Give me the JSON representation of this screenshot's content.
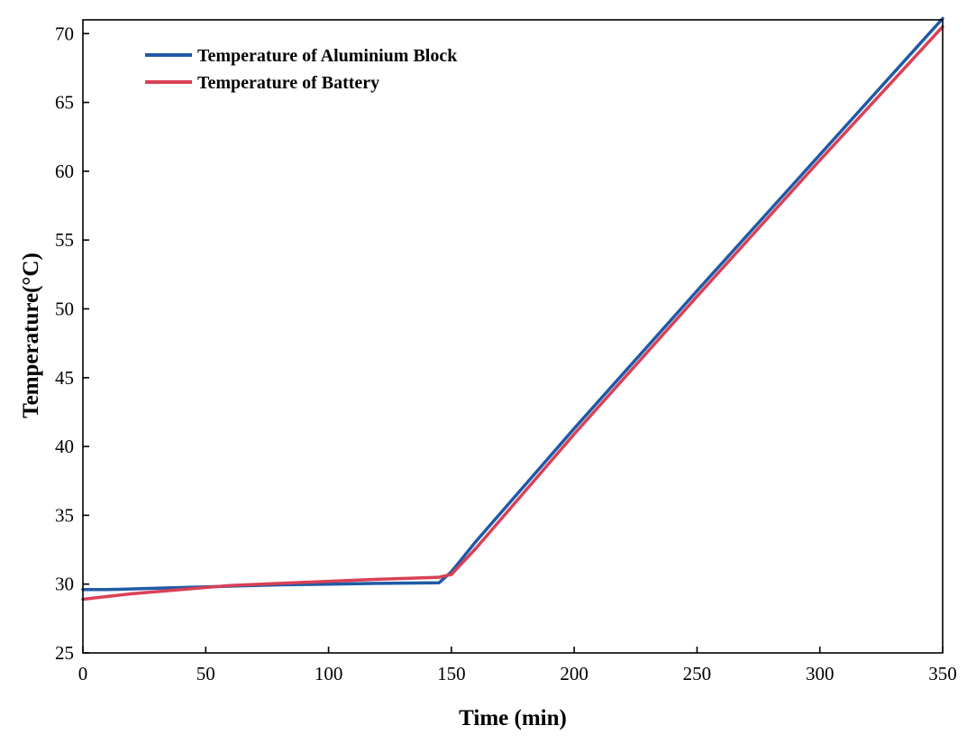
{
  "chart_data": {
    "type": "line",
    "xlabel": "Time (min)",
    "ylabel": "Temperature(°C)",
    "xlim": [
      0,
      350
    ],
    "ylim": [
      25,
      71
    ],
    "xticks": [
      0,
      50,
      100,
      150,
      200,
      250,
      300,
      350
    ],
    "yticks": [
      25,
      30,
      35,
      40,
      45,
      50,
      55,
      60,
      65,
      70
    ],
    "grid": false,
    "legend_position": "top-left",
    "series": [
      {
        "name": "Temperature of Aluminium Block",
        "color": "#1f5aa6",
        "points": [
          [
            0,
            29.6
          ],
          [
            10,
            29.6
          ],
          [
            30,
            29.7
          ],
          [
            50,
            29.8
          ],
          [
            80,
            29.95
          ],
          [
            100,
            30.0
          ],
          [
            120,
            30.05
          ],
          [
            145,
            30.1
          ],
          [
            150,
            30.9
          ],
          [
            160,
            33.1
          ],
          [
            200,
            41.3
          ],
          [
            250,
            51.3
          ],
          [
            300,
            61.2
          ],
          [
            350,
            71.1
          ]
        ]
      },
      {
        "name": "Temperature of Battery",
        "color": "#d94156",
        "points": [
          [
            0,
            28.9
          ],
          [
            10,
            29.1
          ],
          [
            20,
            29.3
          ],
          [
            40,
            29.6
          ],
          [
            60,
            29.9
          ],
          [
            80,
            30.05
          ],
          [
            100,
            30.2
          ],
          [
            120,
            30.35
          ],
          [
            145,
            30.5
          ],
          [
            150,
            30.7
          ],
          [
            160,
            32.6
          ],
          [
            200,
            40.9
          ],
          [
            250,
            50.9
          ],
          [
            300,
            60.8
          ],
          [
            350,
            70.5
          ]
        ]
      }
    ]
  }
}
